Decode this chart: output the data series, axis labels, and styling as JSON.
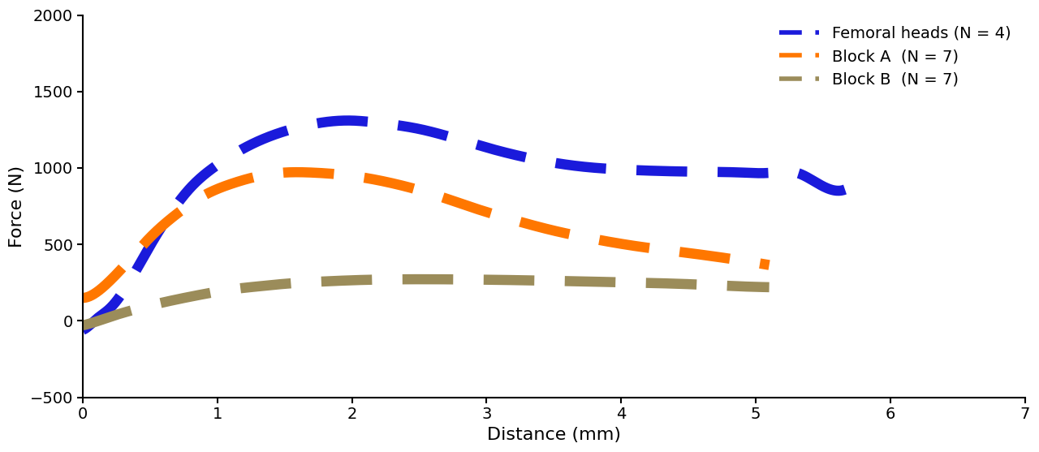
{
  "title": "",
  "xlabel": "Distance (mm)",
  "ylabel": "Force (N)",
  "xlim": [
    0,
    7
  ],
  "ylim": [
    -500,
    2000
  ],
  "xticks": [
    0,
    1,
    2,
    3,
    4,
    5,
    6,
    7
  ],
  "yticks": [
    -500,
    0,
    500,
    1000,
    1500,
    2000
  ],
  "legend_entries": [
    "Femoral heads (N = 4)",
    "Block A  (N = 7)",
    "Block B  (N = 7)"
  ],
  "colors": [
    "#1a1adb",
    "#ff7700",
    "#9b8c5a"
  ],
  "linewidth": 9,
  "background_color": "#ffffff",
  "femoral_x": [
    0.0,
    0.05,
    0.1,
    0.2,
    0.35,
    0.5,
    0.65,
    0.8,
    1.0,
    1.2,
    1.4,
    1.6,
    1.8,
    2.0,
    2.2,
    2.5,
    2.8,
    3.1,
    3.4,
    3.7,
    4.0,
    4.3,
    4.6,
    4.9,
    5.1,
    5.3,
    5.5,
    5.75
  ],
  "femoral_y": [
    -60,
    -30,
    10,
    80,
    260,
    490,
    700,
    870,
    1020,
    1130,
    1210,
    1265,
    1300,
    1310,
    1295,
    1255,
    1185,
    1110,
    1050,
    1010,
    990,
    980,
    975,
    970,
    968,
    970,
    880,
    920
  ],
  "blockA_x": [
    0.0,
    0.05,
    0.1,
    0.2,
    0.35,
    0.5,
    0.7,
    0.9,
    1.1,
    1.3,
    1.5,
    1.7,
    1.9,
    2.1,
    2.3,
    2.5,
    2.7,
    2.9,
    3.2,
    3.5,
    3.8,
    4.1,
    4.4,
    4.7,
    5.0,
    5.1
  ],
  "blockA_y": [
    150,
    160,
    185,
    260,
    400,
    545,
    700,
    820,
    895,
    945,
    970,
    970,
    958,
    935,
    900,
    855,
    800,
    740,
    660,
    590,
    535,
    490,
    455,
    420,
    380,
    365
  ],
  "blockB_x": [
    0.0,
    0.1,
    0.2,
    0.35,
    0.5,
    0.7,
    0.9,
    1.1,
    1.3,
    1.5,
    1.8,
    2.1,
    2.5,
    2.9,
    3.3,
    3.7,
    4.1,
    4.5,
    4.9,
    5.1
  ],
  "blockB_y": [
    -30,
    -5,
    25,
    65,
    100,
    140,
    175,
    205,
    225,
    242,
    258,
    268,
    272,
    270,
    265,
    258,
    250,
    240,
    225,
    220
  ]
}
